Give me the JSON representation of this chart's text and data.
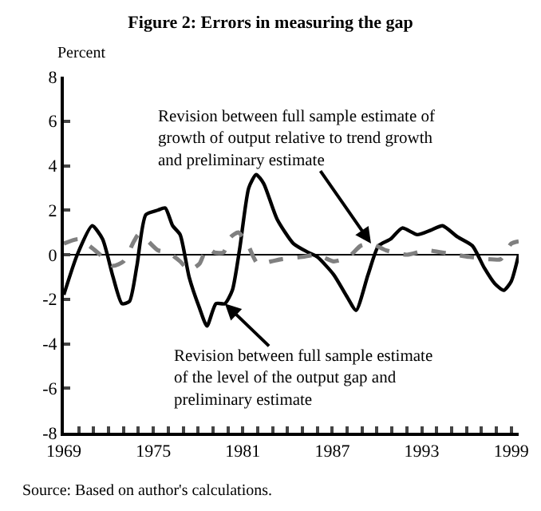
{
  "chart_data": {
    "type": "line",
    "title": "Figure 2: Errors in measuring the gap",
    "ylabel": "Percent",
    "xlim": [
      1969,
      1999.5
    ],
    "ylim": [
      -8,
      8
    ],
    "yticks": [
      -8,
      -6,
      -4,
      -2,
      0,
      2,
      4,
      6,
      8
    ],
    "xticks": [
      1969,
      {
        "value": 1970,
        "label": null
      },
      {
        "value": 1971,
        "label": null
      },
      {
        "value": 1972,
        "label": null
      },
      {
        "value": 1973,
        "label": null
      },
      {
        "value": 1974,
        "label": null
      },
      1975,
      {
        "value": 1976,
        "label": null
      },
      {
        "value": 1977,
        "label": null
      },
      {
        "value": 1978,
        "label": null
      },
      {
        "value": 1979,
        "label": null
      },
      {
        "value": 1980,
        "label": null
      },
      1981,
      {
        "value": 1982,
        "label": null
      },
      {
        "value": 1983,
        "label": null
      },
      {
        "value": 1984,
        "label": null
      },
      {
        "value": 1985,
        "label": null
      },
      {
        "value": 1986,
        "label": null
      },
      1987,
      {
        "value": 1988,
        "label": null
      },
      {
        "value": 1989,
        "label": null
      },
      {
        "value": 1990,
        "label": null
      },
      {
        "value": 1991,
        "label": null
      },
      {
        "value": 1992,
        "label": null
      },
      1993,
      {
        "value": 1994,
        "label": null
      },
      {
        "value": 1995,
        "label": null
      },
      {
        "value": 1996,
        "label": null
      },
      {
        "value": 1997,
        "label": null
      },
      {
        "value": 1998,
        "label": null
      },
      1999
    ],
    "grid": false,
    "marker": "none",
    "ref_lines": [
      {
        "axis": "y",
        "value": 0,
        "label": null,
        "color": "#000000"
      }
    ],
    "series": [
      {
        "color": "#000000",
        "line_style": "solid",
        "x": [
          1969.0,
          1969.9,
          1970.9,
          1971.6,
          1972.3,
          1972.9,
          1973.4,
          1973.9,
          1974.5,
          1975.3,
          1975.8,
          1976.3,
          1976.8,
          1977.4,
          1978.1,
          1978.6,
          1979.2,
          1979.8,
          1980.3,
          1980.8,
          1981.4,
          1981.9,
          1982.4,
          1983.3,
          1984.4,
          1985.4,
          1986.0,
          1987.1,
          1988.0,
          1988.6,
          1989.4,
          1990.1,
          1990.9,
          1991.7,
          1992.7,
          1993.6,
          1994.4,
          1995.4,
          1996.4,
          1997.2,
          1997.9,
          1998.5,
          1999.0,
          1999.5
        ],
        "values": [
          -1.8,
          0.0,
          1.3,
          0.7,
          -1.0,
          -2.2,
          -2.1,
          -0.5,
          1.8,
          2.0,
          2.1,
          1.3,
          0.9,
          -1.0,
          -2.4,
          -3.2,
          -2.2,
          -2.2,
          -1.6,
          0.3,
          3.0,
          3.6,
          3.2,
          1.6,
          0.5,
          0.1,
          -0.1,
          -0.9,
          -1.9,
          -2.5,
          -0.9,
          0.4,
          0.7,
          1.2,
          0.9,
          1.1,
          1.3,
          0.8,
          0.4,
          -0.6,
          -1.3,
          -1.6,
          -1.2,
          0.0
        ]
      },
      {
        "color": "#808080",
        "line_style": "dashed",
        "x": [
          1969.0,
          1970.0,
          1970.9,
          1971.6,
          1972.3,
          1973.0,
          1973.7,
          1974.0,
          1974.5,
          1975.3,
          1976.0,
          1976.8,
          1977.4,
          1978.1,
          1978.6,
          1979.1,
          1979.7,
          1980.2,
          1980.7,
          1981.3,
          1982.0,
          1982.9,
          1983.6,
          1985.0,
          1986.0,
          1987.1,
          1988.1,
          1988.9,
          1989.6,
          1990.6,
          1992.0,
          1993.3,
          1994.8,
          1996.2,
          1997.5,
          1998.3,
          1999.0,
          1999.5
        ],
        "values": [
          0.5,
          0.7,
          0.3,
          -0.1,
          -0.5,
          -0.3,
          0.6,
          0.9,
          0.7,
          0.2,
          0.1,
          -0.3,
          -0.7,
          -0.4,
          0.3,
          0.1,
          0.1,
          0.8,
          1.0,
          0.5,
          -0.4,
          -0.3,
          -0.2,
          -0.1,
          0.0,
          -0.3,
          -0.1,
          0.4,
          0.5,
          0.2,
          0.0,
          0.2,
          0.05,
          -0.1,
          -0.2,
          -0.2,
          0.5,
          0.6
        ]
      }
    ],
    "annotations": [
      {
        "text": "Revision between full sample estimate of\ngrowth of output relative to trend growth\nand preliminary estimate",
        "x": 1989.6,
        "y": 0.5
      },
      {
        "text": "Revision between full sample estimate\nof the level of the output gap and\npreliminary estimate",
        "x": 1979.8,
        "y": -2.2
      },
      "Source: Based on author's calculations."
    ]
  }
}
